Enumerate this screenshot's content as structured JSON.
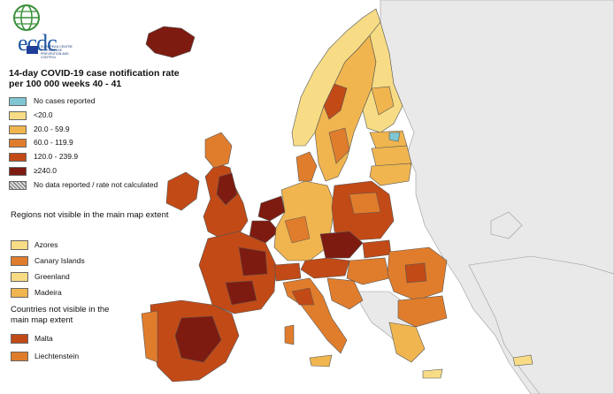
{
  "logo": {
    "wordmark": "ecdc",
    "subtext": "EUROPEAN CENTRE FOR DISEASE PREVENTION AND CONTROL"
  },
  "title": "14-day COVID-19 case notification rate per 100 000 weeks 40 - 41",
  "legend": [
    {
      "label": "No cases reported",
      "color": "#7fc6d2"
    },
    {
      "label": "<20.0",
      "color": "#f7dc85"
    },
    {
      "label": "20.0 - 59.9",
      "color": "#f0b54f"
    },
    {
      "label": "60.0 - 119.9",
      "color": "#e07d2c"
    },
    {
      "label": "120.0 - 239.9",
      "color": "#c24a17"
    },
    {
      "label": "≥240.0",
      "color": "#7e1b10"
    },
    {
      "label": "No data reported / rate not calculated",
      "color": "hatch"
    }
  ],
  "regions_heading": "Regions not visible in the main map extent",
  "regions": [
    {
      "label": "Azores",
      "color": "#f7dc85"
    },
    {
      "label": "Canary Islands",
      "color": "#e07d2c"
    },
    {
      "label": "Greenland",
      "color": "#f7dc85"
    },
    {
      "label": "Madeira",
      "color": "#f0b54f"
    }
  ],
  "countries_heading": "Countries not visible in the main map extent",
  "countries": [
    {
      "label": "Malta",
      "color": "#c24a17"
    },
    {
      "label": "Liechtenstein",
      "color": "#e07d2c"
    }
  ],
  "colors": {
    "sea": "#ffffff",
    "non_eu_land": "#e9e9e9",
    "border": "#333333"
  }
}
